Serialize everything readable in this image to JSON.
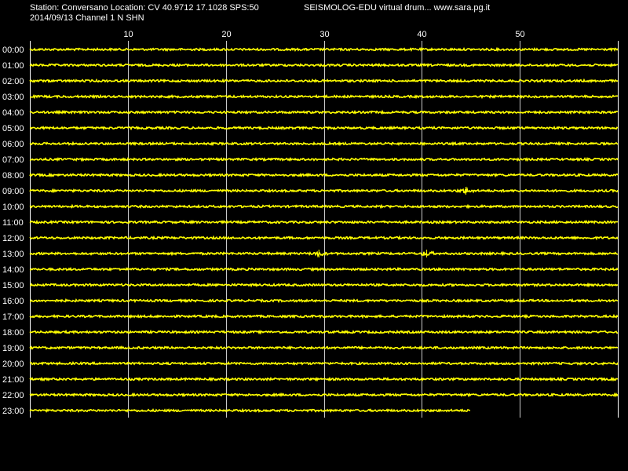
{
  "header": {
    "station_line": "Station: Conversano Location: CV 40.9712 17.1028 SPS:50",
    "title": "SEISMOLOG-EDU virtual drum... www.sara.pg.it",
    "date_channel": "2014/09/13  Channel 1 N SHN"
  },
  "colors": {
    "background": "#000000",
    "trace": "#ffff00",
    "grid": "#ffffff",
    "text": "#ffffff"
  },
  "chart_data": {
    "type": "line",
    "x_unit": "minutes",
    "xlim": [
      0,
      60
    ],
    "x_ticks": [
      10,
      20,
      30,
      40,
      50
    ],
    "x_tick_labels": [
      "10",
      "20",
      "30",
      "40",
      "50"
    ],
    "rows": [
      "00:00",
      "01:00",
      "02:00",
      "03:00",
      "04:00",
      "05:00",
      "06:00",
      "07:00",
      "08:00",
      "09:00",
      "10:00",
      "11:00",
      "12:00",
      "13:00",
      "14:00",
      "15:00",
      "16:00",
      "17:00",
      "18:00",
      "19:00",
      "20:00",
      "21:00",
      "22:00",
      "23:00"
    ],
    "last_row_end_minute": 45,
    "grid": true,
    "events": [
      {
        "row": "09:00",
        "minute": 44.5
      },
      {
        "row": "13:00",
        "minute": 29.5
      },
      {
        "row": "13:00",
        "minute": 40.5
      }
    ]
  }
}
